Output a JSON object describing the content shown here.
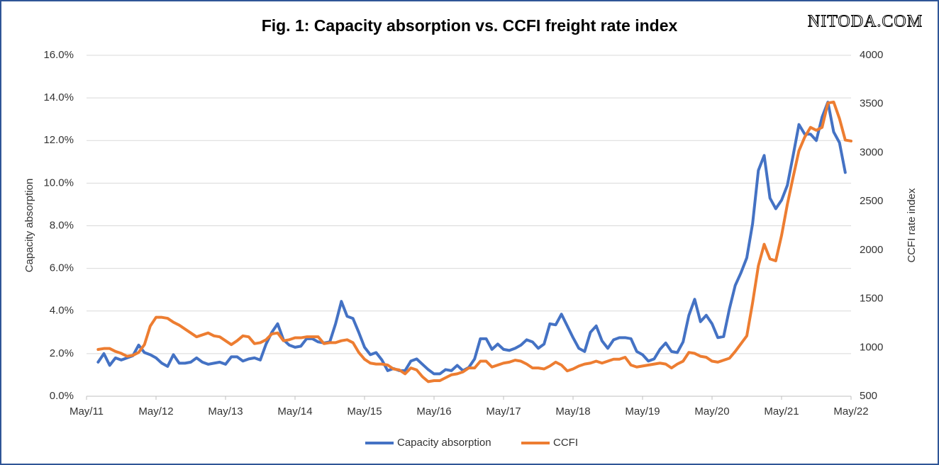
{
  "chart_data": {
    "type": "line",
    "title": "Fig. 1: Capacity absorption vs. CCFI freight rate index",
    "watermark": "NITODA.COM",
    "ylabel": "Capacity absorption",
    "y2label": "CCFI rate index",
    "categories": [
      "May/11",
      null,
      null,
      null,
      null,
      null,
      null,
      null,
      null,
      null,
      null,
      null,
      "May/12",
      null,
      null,
      null,
      null,
      null,
      null,
      null,
      null,
      null,
      null,
      null,
      "May/13",
      null,
      null,
      null,
      null,
      null,
      null,
      null,
      null,
      null,
      null,
      null,
      "May/14",
      null,
      null,
      null,
      null,
      null,
      null,
      null,
      null,
      null,
      null,
      null,
      "May/15",
      null,
      null,
      null,
      null,
      null,
      null,
      null,
      null,
      null,
      null,
      null,
      "May/16",
      null,
      null,
      null,
      null,
      null,
      null,
      null,
      null,
      null,
      null,
      null,
      "May/17",
      null,
      null,
      null,
      null,
      null,
      null,
      null,
      null,
      null,
      null,
      null,
      "May/18",
      null,
      null,
      null,
      null,
      null,
      null,
      null,
      null,
      null,
      null,
      null,
      "May/19",
      null,
      null,
      null,
      null,
      null,
      null,
      null,
      null,
      null,
      null,
      null,
      "May/20",
      null,
      null,
      null,
      null,
      null,
      null,
      null,
      null,
      null,
      null,
      null,
      "May/21",
      null,
      null,
      null,
      null,
      null,
      null,
      null,
      null,
      null,
      null,
      null,
      "May/22"
    ],
    "series": [
      {
        "name": "Capacity absorption",
        "color": "#4472c4",
        "axis": "y",
        "values": [
          null,
          null,
          1.6,
          2.0,
          1.45,
          1.8,
          1.7,
          1.8,
          1.9,
          2.4,
          2.05,
          1.95,
          1.8,
          1.55,
          1.4,
          1.95,
          1.55,
          1.55,
          1.6,
          1.8,
          1.6,
          1.5,
          1.55,
          1.6,
          1.5,
          1.85,
          1.85,
          1.65,
          1.75,
          1.8,
          1.7,
          2.45,
          3.0,
          3.4,
          2.65,
          2.4,
          2.3,
          2.35,
          2.7,
          2.7,
          2.55,
          2.5,
          2.55,
          3.4,
          4.45,
          3.75,
          3.65,
          3.0,
          2.3,
          1.95,
          2.05,
          1.7,
          1.2,
          1.3,
          1.2,
          1.2,
          1.65,
          1.75,
          1.5,
          1.25,
          1.05,
          1.05,
          1.25,
          1.2,
          1.45,
          1.2,
          1.35,
          1.75,
          2.7,
          2.7,
          2.2,
          2.45,
          2.2,
          2.15,
          2.25,
          2.4,
          2.65,
          2.55,
          2.25,
          2.45,
          3.4,
          3.35,
          3.85,
          3.3,
          2.75,
          2.25,
          2.1,
          3.0,
          3.3,
          2.6,
          2.25,
          2.65,
          2.75,
          2.75,
          2.7,
          2.1,
          1.95,
          1.65,
          1.75,
          2.2,
          2.5,
          2.1,
          2.05,
          2.55,
          3.8,
          4.55,
          3.5,
          3.8,
          3.4,
          2.75,
          2.8,
          4.1,
          5.2,
          5.8,
          6.5,
          8.1,
          10.6,
          11.3,
          9.3,
          8.8,
          9.2,
          9.9,
          11.3,
          12.75,
          12.3,
          12.3,
          12.0,
          13.1,
          13.8,
          12.4,
          11.9,
          10.5,
          null
        ]
      },
      {
        "name": "CCFI",
        "color": "#ed7d31",
        "axis": "y2",
        "values": [
          null,
          null,
          980,
          990,
          990,
          960,
          940,
          910,
          920,
          950,
          1030,
          1220,
          1310,
          1310,
          1300,
          1260,
          1230,
          1190,
          1150,
          1110,
          1130,
          1150,
          1120,
          1110,
          1070,
          1030,
          1070,
          1120,
          1110,
          1040,
          1050,
          1080,
          1140,
          1150,
          1070,
          1080,
          1100,
          1100,
          1110,
          1110,
          1110,
          1040,
          1050,
          1050,
          1070,
          1080,
          1050,
          950,
          880,
          840,
          830,
          830,
          820,
          780,
          770,
          730,
          790,
          770,
          700,
          650,
          660,
          660,
          690,
          720,
          730,
          750,
          790,
          790,
          860,
          860,
          800,
          820,
          840,
          850,
          870,
          860,
          830,
          790,
          790,
          780,
          810,
          850,
          820,
          760,
          780,
          810,
          830,
          840,
          860,
          840,
          860,
          880,
          880,
          900,
          820,
          800,
          810,
          820,
          830,
          840,
          830,
          790,
          830,
          860,
          950,
          940,
          910,
          900,
          860,
          850,
          870,
          890,
          960,
          1040,
          1120,
          1460,
          1840,
          2060,
          1910,
          1890,
          2150,
          2470,
          2750,
          3020,
          3160,
          3260,
          3230,
          3260,
          3510,
          3520,
          3350,
          3130,
          3120
        ]
      }
    ],
    "ylim": [
      0,
      16
    ],
    "yticks": [
      {
        "value": 0,
        "label": "0.0%"
      },
      {
        "value": 2,
        "label": "2.0%"
      },
      {
        "value": 4,
        "label": "4.0%"
      },
      {
        "value": 6,
        "label": "6.0%"
      },
      {
        "value": 8,
        "label": "8.0%"
      },
      {
        "value": 10,
        "label": "10.0%"
      },
      {
        "value": 12,
        "label": "12.0%"
      },
      {
        "value": 14,
        "label": "14.0%"
      },
      {
        "value": 16,
        "label": "16.0%"
      }
    ],
    "y2lim": [
      500,
      4000
    ],
    "y2ticks": [
      500,
      1000,
      1500,
      2000,
      2500,
      3000,
      3500,
      4000
    ],
    "grid": true,
    "legend": "bottom"
  }
}
